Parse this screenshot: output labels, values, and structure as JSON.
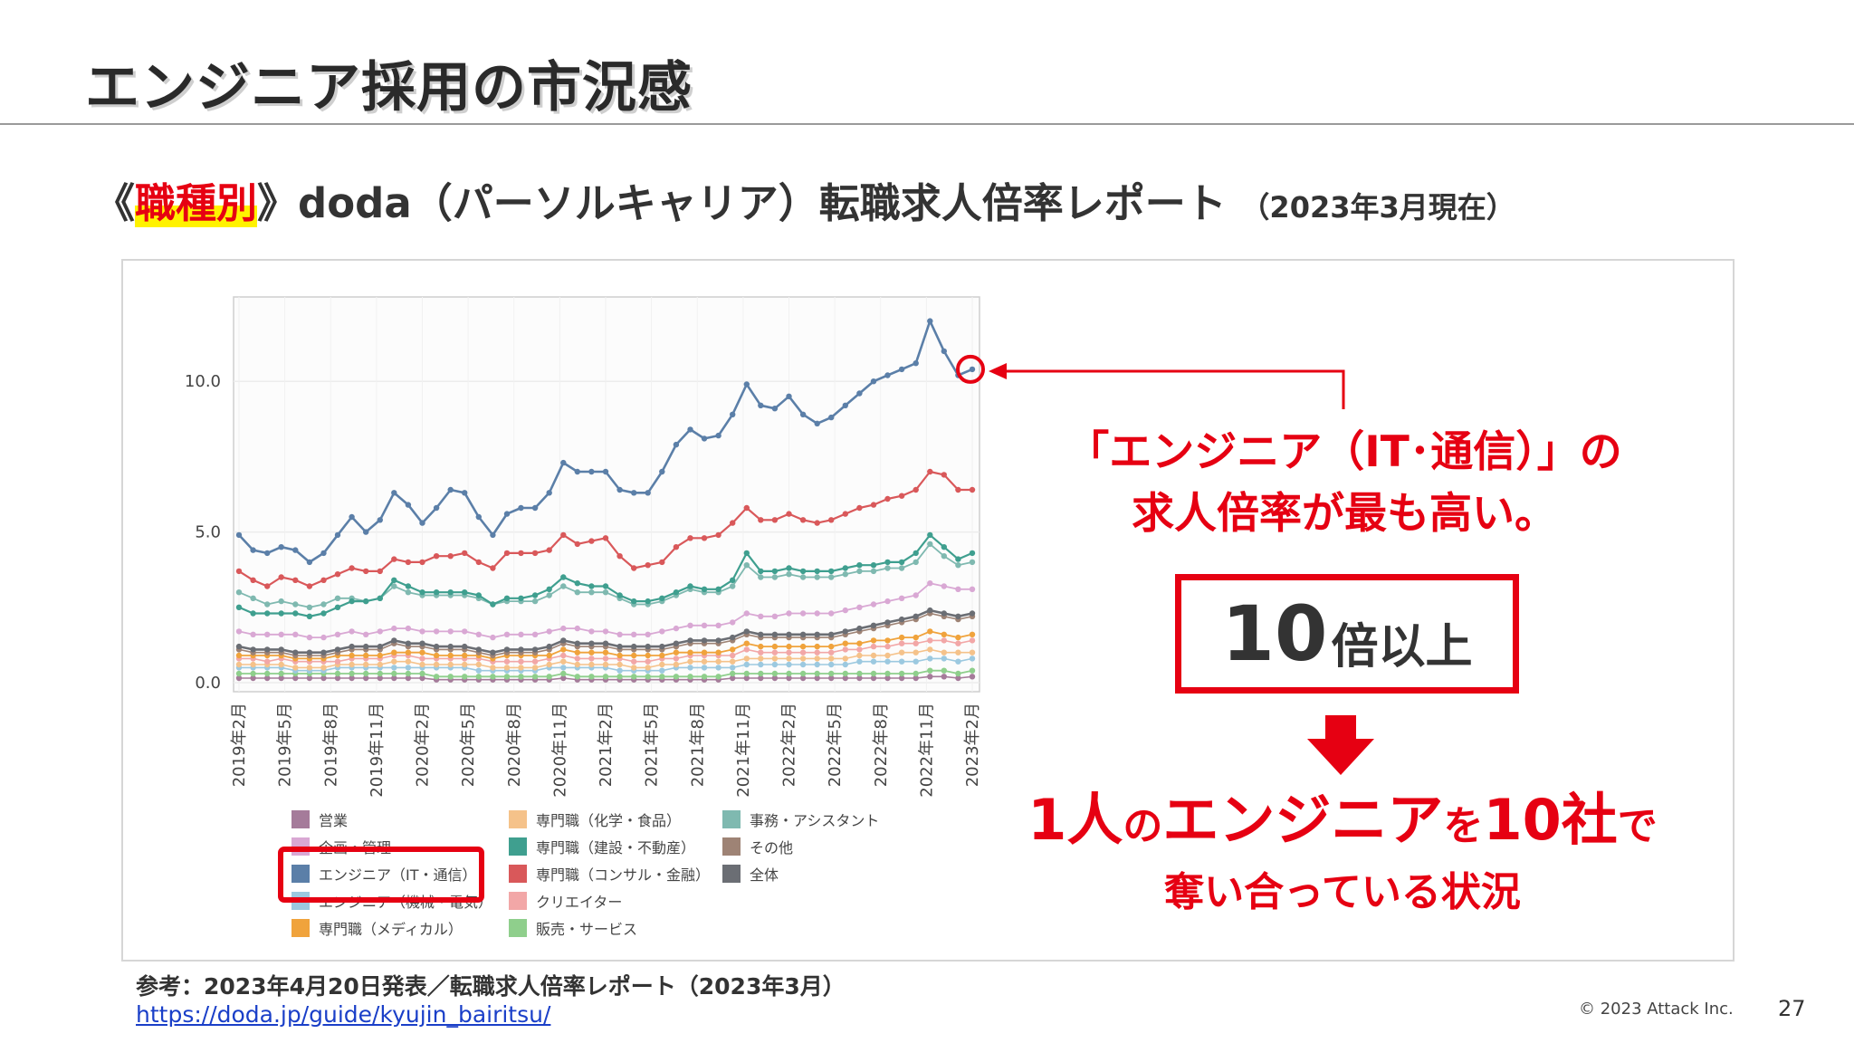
{
  "slide": {
    "title": "エンジニア採用の市況感",
    "subtitle_open": "《",
    "subtitle_highlight": "職種別",
    "subtitle_rest": "》doda（パーソルキャリア）転職求人倍率レポート",
    "subtitle_date": "（2023年3月現在）",
    "callout_line1": "「エンジニア（IT･通信）」の",
    "callout_line2": "求人倍率が最も高い。",
    "big_number": "10",
    "big_suffix": "倍以上",
    "conclusion_1a": "1人",
    "conclusion_1b": "の",
    "conclusion_1c": "エンジニア",
    "conclusion_1d": "を",
    "conclusion_1e": "10社",
    "conclusion_1f": "で",
    "conclusion_2": "奪い合っている状況",
    "reference": "参考：2023年4月20日発表／転職求人倍率レポート（2023年3月）",
    "reference_link": "https://doda.jp/guide/kyujin_bairitsu/",
    "copyright": "© 2023 Attack Inc.",
    "page_number": "27"
  },
  "colors": {
    "accent_red": "#e60012",
    "highlight_yellow": "#fff200"
  },
  "chart_data": {
    "type": "line",
    "ylim": [
      0,
      12.5
    ],
    "yticks": [
      0.0,
      5.0,
      10.0
    ],
    "ytick_labels": [
      "0.0",
      "5.0",
      "10.0"
    ],
    "grid": true,
    "legend_position": "bottom",
    "x_labels": [
      "2019年2月",
      "2019年5月",
      "2019年8月",
      "2019年11月",
      "2020年2月",
      "2020年5月",
      "2020年8月",
      "2020年11月",
      "2021年2月",
      "2021年5月",
      "2021年8月",
      "2021年11月",
      "2022年2月",
      "2022年5月",
      "2022年8月",
      "2022年11月",
      "2023年2月"
    ],
    "highlight_series": "エンジニア（IT・通信）",
    "series": [
      {
        "name": "エンジニア（IT・通信）",
        "color": "#5b7fa8",
        "width": 2.6,
        "values": [
          4.9,
          4.4,
          4.3,
          4.5,
          4.4,
          4.0,
          4.3,
          4.9,
          5.5,
          5.0,
          5.4,
          6.3,
          5.9,
          5.3,
          5.8,
          6.4,
          6.3,
          5.5,
          4.9,
          5.6,
          5.8,
          5.8,
          6.3,
          7.3,
          7.0,
          7.0,
          7.0,
          6.4,
          6.3,
          6.3,
          7.0,
          7.9,
          8.4,
          8.1,
          8.2,
          8.9,
          9.9,
          9.2,
          9.1,
          9.5,
          8.9,
          8.6,
          8.8,
          9.2,
          9.6,
          10.0,
          10.2,
          10.4,
          10.6,
          12.0,
          11.0,
          10.2,
          10.4
        ]
      },
      {
        "name": "専門職（コンサル・金融）",
        "color": "#d9585a",
        "width": 2.2,
        "values": [
          3.7,
          3.4,
          3.2,
          3.5,
          3.4,
          3.2,
          3.4,
          3.6,
          3.8,
          3.7,
          3.7,
          4.1,
          4.0,
          4.0,
          4.2,
          4.2,
          4.3,
          4.0,
          3.8,
          4.3,
          4.3,
          4.3,
          4.4,
          4.9,
          4.6,
          4.7,
          4.8,
          4.2,
          3.8,
          3.9,
          4.0,
          4.5,
          4.8,
          4.8,
          4.9,
          5.3,
          5.8,
          5.4,
          5.4,
          5.6,
          5.4,
          5.3,
          5.4,
          5.6,
          5.8,
          5.9,
          6.1,
          6.2,
          6.4,
          7.0,
          6.9,
          6.4,
          6.4
        ]
      },
      {
        "name": "専門職（建設・不動産）",
        "color": "#3f9f8f",
        "width": 2.2,
        "values": [
          2.5,
          2.3,
          2.3,
          2.3,
          2.3,
          2.2,
          2.3,
          2.5,
          2.7,
          2.7,
          2.8,
          3.4,
          3.2,
          3.0,
          3.0,
          3.0,
          3.0,
          2.9,
          2.6,
          2.8,
          2.8,
          2.9,
          3.1,
          3.5,
          3.3,
          3.2,
          3.2,
          2.9,
          2.7,
          2.7,
          2.8,
          3.0,
          3.2,
          3.1,
          3.1,
          3.4,
          4.3,
          3.7,
          3.7,
          3.8,
          3.7,
          3.7,
          3.7,
          3.8,
          3.9,
          3.9,
          4.0,
          4.0,
          4.3,
          4.9,
          4.5,
          4.1,
          4.3
        ]
      },
      {
        "name": "事務・アシスタント",
        "color": "#7fb9b0",
        "width": 1.8,
        "values": [
          3.0,
          2.8,
          2.6,
          2.7,
          2.6,
          2.5,
          2.6,
          2.8,
          2.8,
          2.7,
          2.8,
          3.2,
          3.0,
          2.9,
          2.9,
          2.9,
          2.9,
          2.8,
          2.6,
          2.7,
          2.7,
          2.7,
          2.9,
          3.2,
          3.0,
          3.0,
          3.0,
          2.8,
          2.6,
          2.6,
          2.7,
          2.9,
          3.1,
          3.0,
          3.0,
          3.2,
          3.9,
          3.5,
          3.5,
          3.6,
          3.5,
          3.5,
          3.5,
          3.6,
          3.7,
          3.7,
          3.8,
          3.8,
          4.0,
          4.6,
          4.2,
          3.9,
          4.0
        ]
      },
      {
        "name": "企画・管理",
        "color": "#d9a8d4",
        "width": 1.8,
        "values": [
          1.7,
          1.6,
          1.6,
          1.6,
          1.6,
          1.5,
          1.5,
          1.6,
          1.7,
          1.6,
          1.7,
          1.8,
          1.8,
          1.7,
          1.7,
          1.7,
          1.7,
          1.6,
          1.5,
          1.6,
          1.6,
          1.6,
          1.7,
          1.8,
          1.8,
          1.7,
          1.7,
          1.6,
          1.6,
          1.6,
          1.7,
          1.8,
          1.9,
          1.9,
          1.9,
          2.0,
          2.3,
          2.2,
          2.2,
          2.3,
          2.3,
          2.3,
          2.3,
          2.4,
          2.5,
          2.6,
          2.7,
          2.8,
          2.9,
          3.3,
          3.2,
          3.1,
          3.1
        ]
      },
      {
        "name": "全体",
        "color": "#6b6e74",
        "width": 2.6,
        "values": [
          1.2,
          1.1,
          1.1,
          1.1,
          1.0,
          1.0,
          1.0,
          1.1,
          1.2,
          1.2,
          1.2,
          1.4,
          1.3,
          1.3,
          1.2,
          1.2,
          1.2,
          1.1,
          1.0,
          1.1,
          1.1,
          1.1,
          1.2,
          1.4,
          1.3,
          1.3,
          1.3,
          1.2,
          1.2,
          1.2,
          1.2,
          1.3,
          1.4,
          1.4,
          1.4,
          1.5,
          1.7,
          1.6,
          1.6,
          1.6,
          1.6,
          1.6,
          1.6,
          1.7,
          1.8,
          1.9,
          2.0,
          2.1,
          2.2,
          2.4,
          2.3,
          2.2,
          2.3
        ]
      },
      {
        "name": "その他",
        "color": "#9e8375",
        "width": 1.6,
        "values": [
          1.1,
          1.0,
          1.0,
          1.0,
          0.9,
          0.9,
          0.9,
          1.0,
          1.1,
          1.1,
          1.1,
          1.3,
          1.2,
          1.2,
          1.1,
          1.1,
          1.1,
          1.0,
          0.9,
          1.0,
          1.0,
          1.0,
          1.1,
          1.3,
          1.2,
          1.2,
          1.2,
          1.1,
          1.1,
          1.1,
          1.1,
          1.2,
          1.3,
          1.3,
          1.3,
          1.4,
          1.6,
          1.5,
          1.5,
          1.5,
          1.5,
          1.5,
          1.5,
          1.6,
          1.7,
          1.8,
          1.9,
          2.0,
          2.1,
          2.3,
          2.2,
          2.1,
          2.2
        ]
      },
      {
        "name": "専門職（メディカル）",
        "color": "#f0a33c",
        "width": 1.8,
        "values": [
          0.9,
          0.9,
          0.9,
          0.9,
          0.8,
          0.8,
          0.8,
          0.9,
          0.9,
          0.9,
          0.9,
          1.0,
          1.0,
          1.0,
          0.9,
          0.9,
          0.9,
          0.9,
          0.8,
          0.9,
          0.9,
          0.9,
          0.9,
          1.1,
          1.0,
          1.0,
          1.0,
          0.9,
          0.9,
          0.9,
          0.9,
          1.0,
          1.0,
          1.0,
          1.0,
          1.1,
          1.3,
          1.2,
          1.2,
          1.2,
          1.2,
          1.2,
          1.2,
          1.3,
          1.3,
          1.4,
          1.4,
          1.5,
          1.5,
          1.7,
          1.6,
          1.5,
          1.6
        ]
      },
      {
        "name": "クリエイター",
        "color": "#f2a7a7",
        "width": 1.6,
        "values": [
          0.8,
          0.8,
          0.7,
          0.8,
          0.7,
          0.7,
          0.7,
          0.7,
          0.8,
          0.8,
          0.8,
          0.9,
          0.9,
          0.8,
          0.8,
          0.8,
          0.8,
          0.8,
          0.7,
          0.7,
          0.7,
          0.7,
          0.8,
          0.9,
          0.8,
          0.8,
          0.8,
          0.8,
          0.7,
          0.7,
          0.8,
          0.8,
          0.9,
          0.9,
          0.9,
          0.9,
          1.1,
          1.0,
          1.0,
          1.0,
          1.0,
          1.0,
          1.0,
          1.1,
          1.1,
          1.2,
          1.2,
          1.3,
          1.3,
          1.4,
          1.4,
          1.3,
          1.4
        ]
      },
      {
        "name": "専門職（化学・食品）",
        "color": "#f5c28a",
        "width": 1.6,
        "values": [
          0.6,
          0.6,
          0.6,
          0.6,
          0.5,
          0.5,
          0.5,
          0.6,
          0.6,
          0.6,
          0.6,
          0.7,
          0.7,
          0.6,
          0.6,
          0.6,
          0.6,
          0.6,
          0.5,
          0.5,
          0.5,
          0.5,
          0.6,
          0.7,
          0.6,
          0.6,
          0.6,
          0.6,
          0.5,
          0.5,
          0.6,
          0.6,
          0.7,
          0.7,
          0.7,
          0.7,
          0.8,
          0.8,
          0.8,
          0.8,
          0.8,
          0.8,
          0.8,
          0.8,
          0.9,
          0.9,
          0.9,
          1.0,
          1.0,
          1.1,
          1.0,
          1.0,
          1.0
        ]
      },
      {
        "name": "エンジニア（機械・電気）",
        "color": "#9cc9e0",
        "width": 1.6,
        "values": [
          0.5,
          0.5,
          0.5,
          0.5,
          0.4,
          0.4,
          0.4,
          0.5,
          0.5,
          0.5,
          0.5,
          0.5,
          0.5,
          0.5,
          0.5,
          0.5,
          0.5,
          0.4,
          0.4,
          0.4,
          0.4,
          0.4,
          0.5,
          0.5,
          0.5,
          0.5,
          0.5,
          0.4,
          0.4,
          0.4,
          0.4,
          0.5,
          0.5,
          0.5,
          0.5,
          0.5,
          0.6,
          0.6,
          0.6,
          0.6,
          0.6,
          0.6,
          0.6,
          0.6,
          0.7,
          0.7,
          0.7,
          0.7,
          0.7,
          0.8,
          0.8,
          0.7,
          0.8
        ]
      },
      {
        "name": "販売・サービス",
        "color": "#8fcf8c",
        "width": 1.8,
        "values": [
          0.3,
          0.3,
          0.3,
          0.3,
          0.3,
          0.3,
          0.3,
          0.3,
          0.3,
          0.3,
          0.3,
          0.3,
          0.3,
          0.3,
          0.2,
          0.2,
          0.2,
          0.2,
          0.2,
          0.2,
          0.2,
          0.2,
          0.2,
          0.3,
          0.2,
          0.2,
          0.2,
          0.2,
          0.2,
          0.2,
          0.2,
          0.2,
          0.2,
          0.2,
          0.2,
          0.3,
          0.3,
          0.3,
          0.3,
          0.3,
          0.3,
          0.3,
          0.3,
          0.3,
          0.3,
          0.3,
          0.3,
          0.3,
          0.3,
          0.4,
          0.4,
          0.3,
          0.4
        ]
      },
      {
        "name": "営業",
        "color": "#a57b9a",
        "width": 1.6,
        "values": [
          0.15,
          0.15,
          0.15,
          0.15,
          0.15,
          0.15,
          0.15,
          0.15,
          0.15,
          0.15,
          0.15,
          0.15,
          0.15,
          0.15,
          0.1,
          0.1,
          0.1,
          0.1,
          0.1,
          0.1,
          0.1,
          0.1,
          0.1,
          0.15,
          0.1,
          0.1,
          0.1,
          0.1,
          0.1,
          0.1,
          0.1,
          0.1,
          0.1,
          0.1,
          0.1,
          0.15,
          0.15,
          0.15,
          0.15,
          0.15,
          0.15,
          0.15,
          0.15,
          0.15,
          0.15,
          0.15,
          0.15,
          0.15,
          0.15,
          0.2,
          0.2,
          0.15,
          0.2
        ]
      }
    ],
    "legend": [
      {
        "name": "営業",
        "color": "#a57b9a"
      },
      {
        "name": "企画・管理",
        "color": "#d9a8d4"
      },
      {
        "name": "エンジニア（IT・通信）",
        "color": "#5b7fa8"
      },
      {
        "name": "エンジニア（機械・電気）",
        "color": "#9cc9e0"
      },
      {
        "name": "専門職（メディカル）",
        "color": "#f0a33c"
      },
      {
        "name": "専門職（化学・食品）",
        "color": "#f5c28a"
      },
      {
        "name": "専門職（建設・不動産）",
        "color": "#3f9f8f"
      },
      {
        "name": "専門職（コンサル・金融）",
        "color": "#d9585a"
      },
      {
        "name": "クリエイター",
        "color": "#f2a7a7"
      },
      {
        "name": "販売・サービス",
        "color": "#8fcf8c"
      },
      {
        "name": "事務・アシスタント",
        "color": "#7fb9b0"
      },
      {
        "name": "その他",
        "color": "#9e8375"
      },
      {
        "name": "全体",
        "color": "#6b6e74"
      }
    ]
  }
}
